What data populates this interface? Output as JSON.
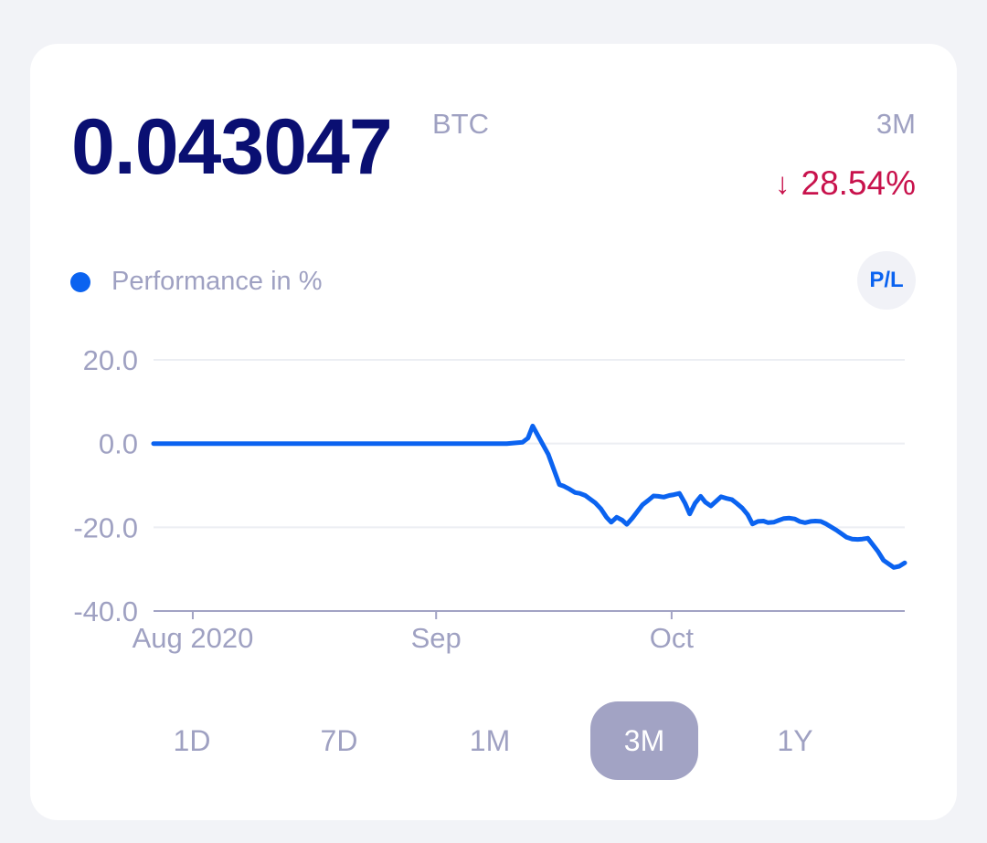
{
  "summary": {
    "balance": "0.043047",
    "unit": "BTC",
    "period": "3M",
    "change_arrow": "↓",
    "change": "28.54%"
  },
  "legend": {
    "label": "Performance in %"
  },
  "pl_button": {
    "label": "P/L"
  },
  "periods": [
    {
      "label": "1D",
      "active": false
    },
    {
      "label": "7D",
      "active": false
    },
    {
      "label": "1M",
      "active": false
    },
    {
      "label": "3M",
      "active": true
    },
    {
      "label": "1Y",
      "active": false
    }
  ],
  "colors": {
    "line": "#0b63f0",
    "grid": "#eceef3",
    "axis": "#a2a3c4",
    "tick_text": "#9fa1c2"
  },
  "chart_data": {
    "type": "line",
    "series": [
      {
        "values": [
          [
            -5,
            0.0
          ],
          [
            0,
            0.0
          ],
          [
            10,
            0.0
          ],
          [
            20,
            0.0
          ],
          [
            30,
            0.0
          ],
          [
            35,
            0.0
          ],
          [
            40,
            0.0
          ],
          [
            42,
            0.3
          ],
          [
            42.7,
            1.3
          ],
          [
            43.3,
            4.2
          ],
          [
            44,
            1.8
          ],
          [
            45.3,
            -2.6
          ],
          [
            46.7,
            -9.8
          ],
          [
            47.3,
            -10.2
          ],
          [
            48,
            -10.9
          ],
          [
            48.7,
            -11.7
          ],
          [
            49.3,
            -11.9
          ],
          [
            50,
            -12.4
          ],
          [
            51.3,
            -14.2
          ],
          [
            52,
            -15.6
          ],
          [
            52.7,
            -17.6
          ],
          [
            53.3,
            -18.8
          ],
          [
            54,
            -17.6
          ],
          [
            54.7,
            -18.3
          ],
          [
            55.3,
            -19.3
          ],
          [
            56,
            -17.8
          ],
          [
            57.3,
            -14.6
          ],
          [
            58,
            -13.6
          ],
          [
            58.7,
            -12.5
          ],
          [
            59.3,
            -12.6
          ],
          [
            60,
            -12.8
          ],
          [
            60.7,
            -12.4
          ],
          [
            61.3,
            -12.2
          ],
          [
            62,
            -11.9
          ],
          [
            62.7,
            -14.2
          ],
          [
            63.3,
            -16.8
          ],
          [
            64,
            -14.2
          ],
          [
            64.7,
            -12.6
          ],
          [
            65.3,
            -14.0
          ],
          [
            66,
            -14.9
          ],
          [
            66.7,
            -13.7
          ],
          [
            67.3,
            -12.7
          ],
          [
            68,
            -13.1
          ],
          [
            68.7,
            -13.4
          ],
          [
            69.3,
            -14.3
          ],
          [
            70,
            -15.4
          ],
          [
            70.7,
            -17.0
          ],
          [
            71.3,
            -19.2
          ],
          [
            72,
            -18.6
          ],
          [
            72.7,
            -18.5
          ],
          [
            73.3,
            -18.9
          ],
          [
            74,
            -18.8
          ],
          [
            74.7,
            -18.3
          ],
          [
            75.3,
            -17.9
          ],
          [
            76,
            -17.8
          ],
          [
            76.7,
            -18.0
          ],
          [
            77.3,
            -18.6
          ],
          [
            78,
            -18.9
          ],
          [
            78.7,
            -18.6
          ],
          [
            79.3,
            -18.5
          ],
          [
            80,
            -18.6
          ],
          [
            80.7,
            -19.2
          ],
          [
            81.3,
            -19.9
          ],
          [
            82,
            -20.7
          ],
          [
            82.7,
            -21.6
          ],
          [
            83.3,
            -22.4
          ],
          [
            84,
            -22.8
          ],
          [
            84.7,
            -22.9
          ],
          [
            85.3,
            -22.8
          ],
          [
            86,
            -22.6
          ],
          [
            87.3,
            -25.8
          ],
          [
            88,
            -27.9
          ],
          [
            88.7,
            -28.8
          ],
          [
            89.3,
            -29.6
          ],
          [
            90,
            -29.3
          ],
          [
            90.7,
            -28.5
          ]
        ]
      }
    ],
    "x_ticks": [
      {
        "x": 0,
        "label": "Aug 2020"
      },
      {
        "x": 31,
        "label": "Sep"
      },
      {
        "x": 61,
        "label": "Oct"
      }
    ],
    "xlim": [
      -5,
      90.7
    ],
    "ylim": [
      -40,
      20
    ],
    "y_ticks": [
      20,
      0,
      -20,
      -40
    ],
    "y_tick_labels": [
      "20.0",
      "0.0",
      "-20.0",
      "-40.0"
    ],
    "grid": true
  }
}
